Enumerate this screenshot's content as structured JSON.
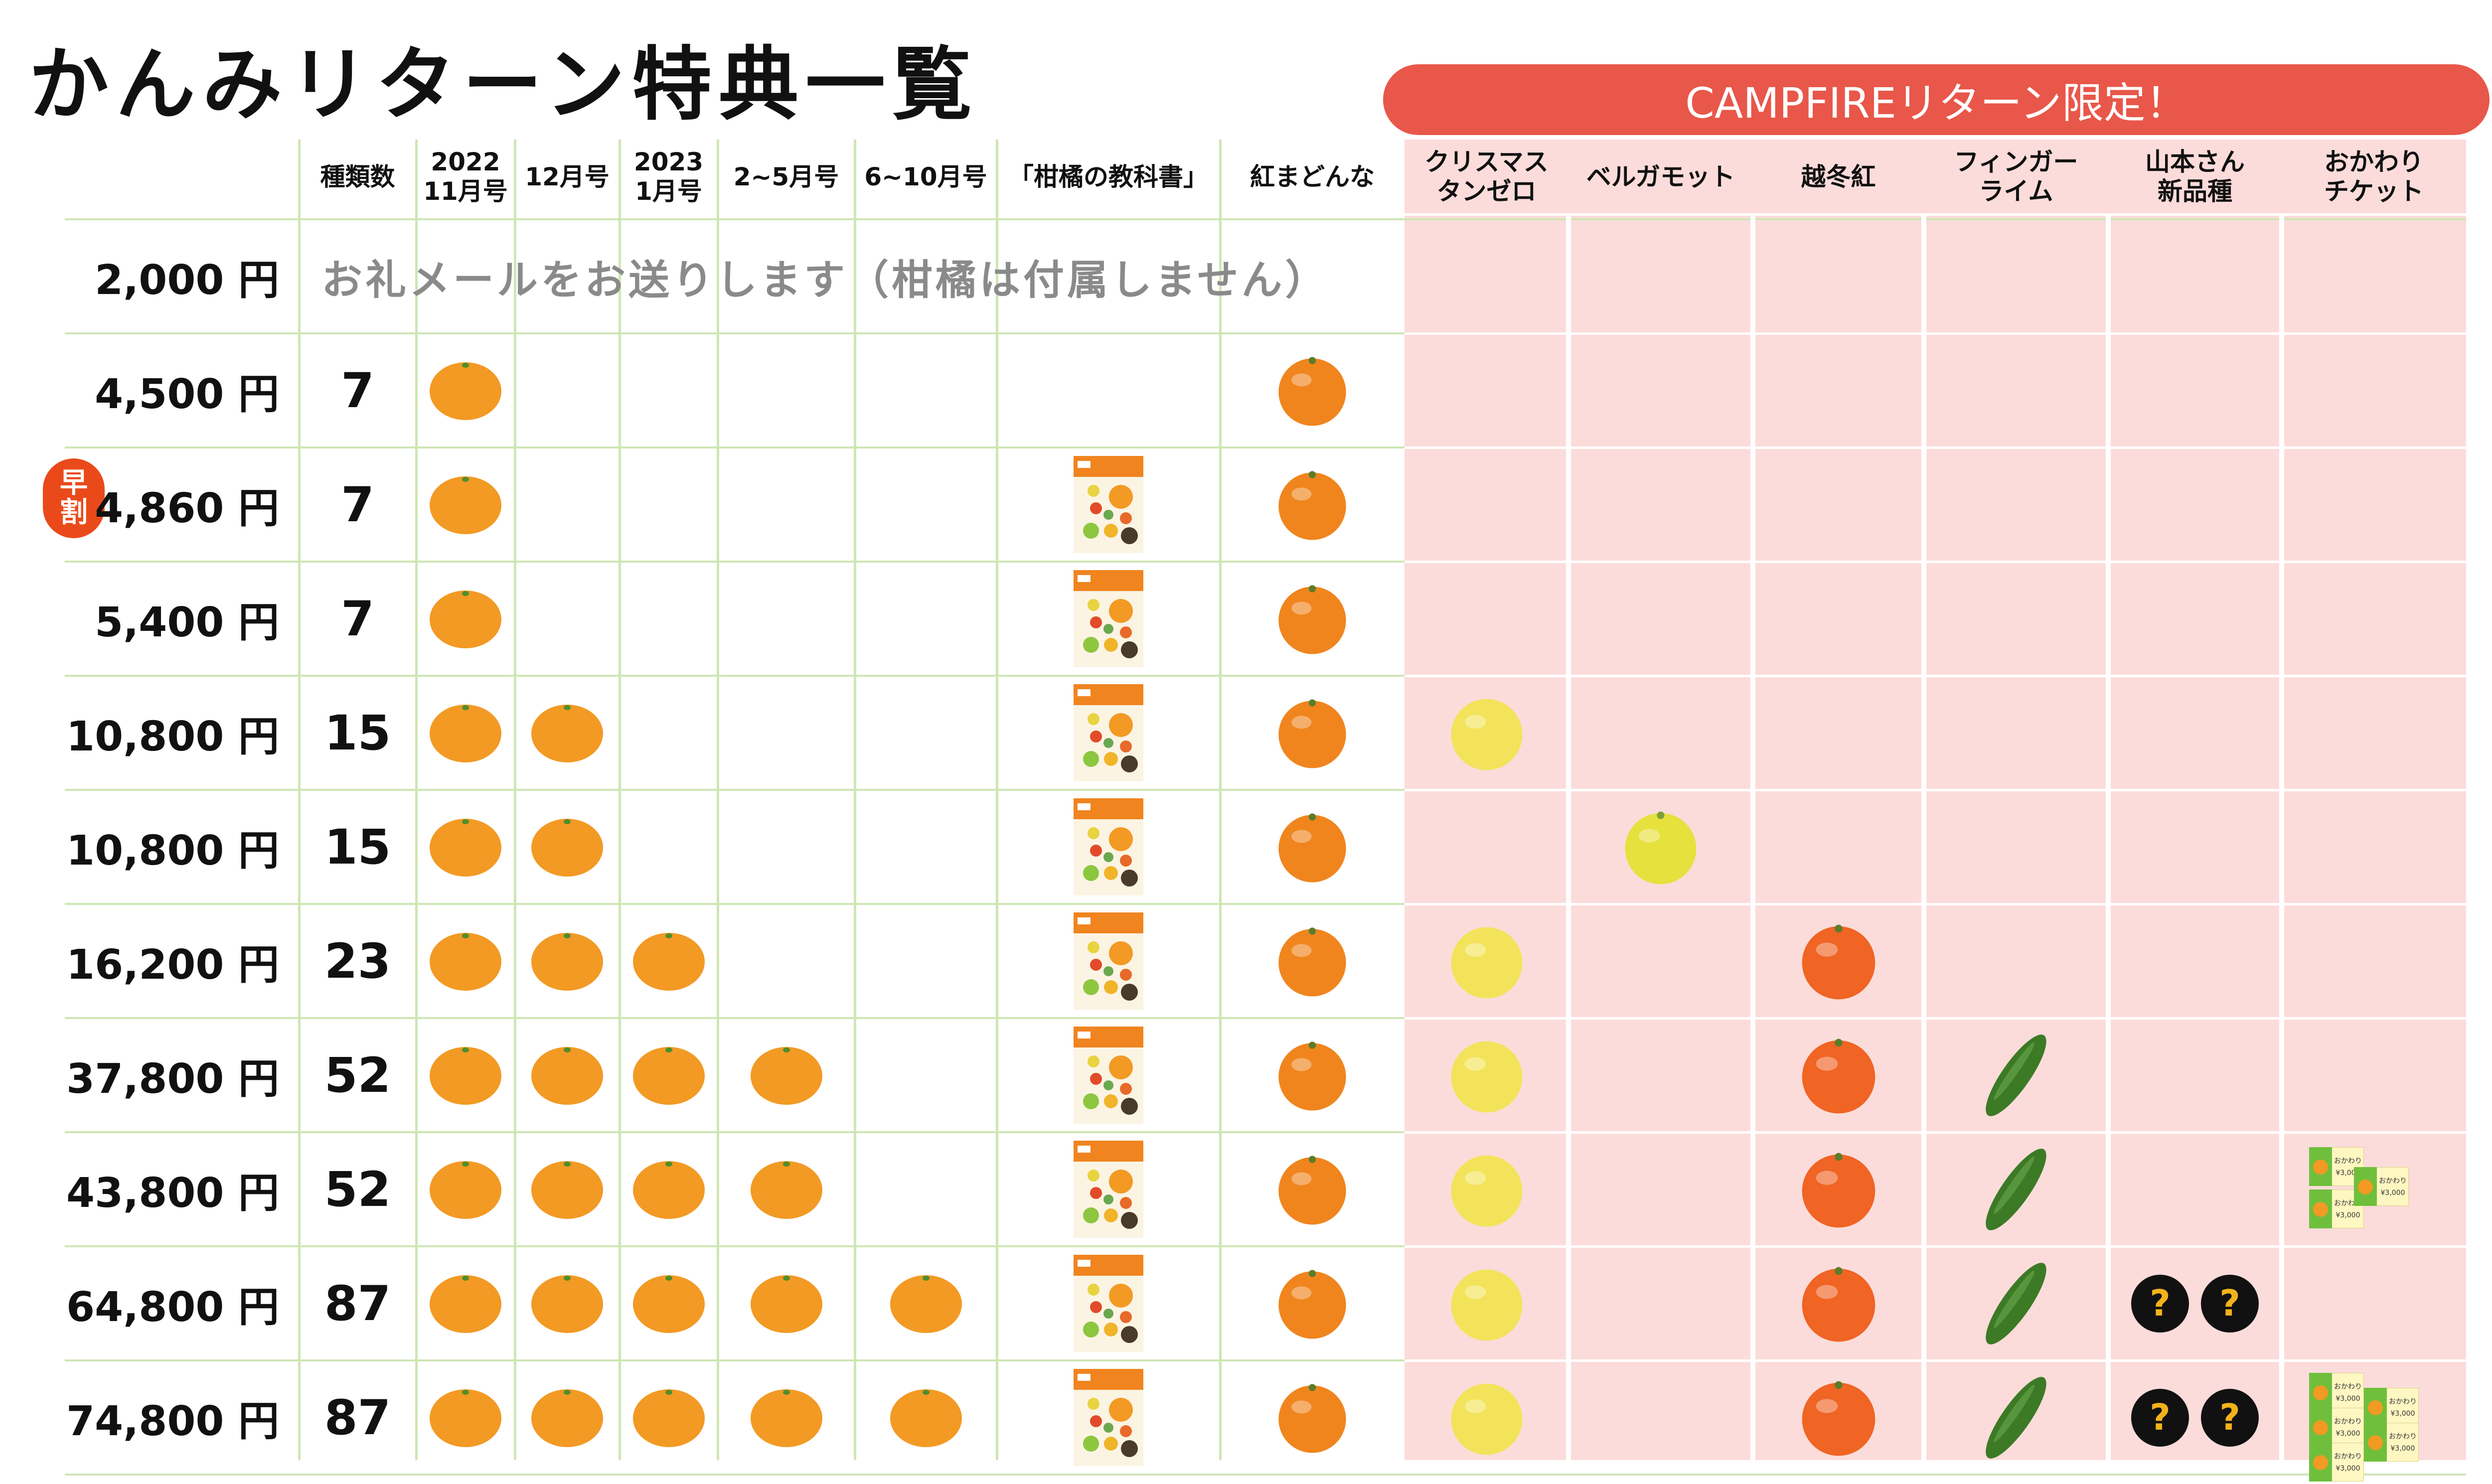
{
  "title": "かんみリターン特典一覧",
  "campfire_banner": "CAMPFIREリターン限定！",
  "early_badge": [
    "早",
    "割"
  ],
  "columns": [
    {
      "label": "種類数"
    },
    {
      "label": "2022\n11月号"
    },
    {
      "label": "12月号"
    },
    {
      "label": "2023\n1月号"
    },
    {
      "label": "2~5月号"
    },
    {
      "label": "6~10月号"
    },
    {
      "label": "「柑橘の教科書」"
    },
    {
      "label": "紅まどんな"
    },
    {
      "label": "クリスマス\nタンゼロ"
    },
    {
      "label": "ベルガモット"
    },
    {
      "label": "越冬紅"
    },
    {
      "label": "フィンガー\nライム"
    },
    {
      "label": "山本さん\n新品種"
    },
    {
      "label": "おかわり\nチケット"
    }
  ],
  "note_2000": "お礼メールをお送りします（柑橘は付属しません）",
  "rows": [
    {
      "price": "2,000 円",
      "count": "",
      "early": false,
      "cells": [
        0,
        0,
        0,
        0,
        0,
        0,
        0,
        0,
        0,
        0,
        0,
        0,
        0
      ]
    },
    {
      "price": "4,500 円",
      "count": "7",
      "early": false,
      "cells": [
        1,
        0,
        0,
        0,
        0,
        0,
        1,
        0,
        0,
        0,
        0,
        0,
        0
      ]
    },
    {
      "price": "4,860 円",
      "count": "7",
      "early": true,
      "cells": [
        1,
        0,
        0,
        0,
        0,
        1,
        1,
        0,
        0,
        0,
        0,
        0,
        0
      ]
    },
    {
      "price": "5,400 円",
      "count": "7",
      "early": false,
      "cells": [
        1,
        0,
        0,
        0,
        0,
        1,
        1,
        0,
        0,
        0,
        0,
        0,
        0
      ]
    },
    {
      "price": "10,800 円",
      "count": "15",
      "early": false,
      "cells": [
        1,
        1,
        0,
        0,
        0,
        1,
        1,
        1,
        0,
        0,
        0,
        0,
        0
      ]
    },
    {
      "price": "10,800 円",
      "count": "15",
      "early": false,
      "cells": [
        1,
        1,
        0,
        0,
        0,
        1,
        1,
        0,
        1,
        0,
        0,
        0,
        0
      ]
    },
    {
      "price": "16,200 円",
      "count": "23",
      "early": false,
      "cells": [
        1,
        1,
        1,
        0,
        0,
        1,
        1,
        1,
        0,
        1,
        0,
        0,
        0
      ]
    },
    {
      "price": "37,800 円",
      "count": "52",
      "early": false,
      "cells": [
        1,
        1,
        1,
        1,
        0,
        1,
        1,
        1,
        0,
        1,
        1,
        0,
        0
      ]
    },
    {
      "price": "43,800 円",
      "count": "52",
      "early": false,
      "cells": [
        1,
        1,
        1,
        1,
        0,
        1,
        1,
        1,
        0,
        1,
        1,
        0,
        1
      ]
    },
    {
      "price": "64,800 円",
      "count": "87",
      "early": false,
      "cells": [
        1,
        1,
        1,
        1,
        1,
        1,
        1,
        1,
        0,
        1,
        1,
        1,
        0
      ]
    },
    {
      "price": "74,800 円",
      "count": "87",
      "early": false,
      "cells": [
        1,
        1,
        1,
        1,
        1,
        1,
        1,
        1,
        0,
        1,
        1,
        1,
        2
      ]
    }
  ],
  "ticket_label": "おかわり",
  "ticket_value": "¥3,000",
  "mystery_mark": "?",
  "colors": {
    "banner": "#e8574a",
    "campfire_bg": "#fbdcda",
    "grid_line": "#cfe6b4",
    "mandarin": "#f29a24",
    "madonna": "#f0851e",
    "tangelo": "#f3e35a",
    "bergamot": "#e6e13d",
    "etto_beni": "#f06424",
    "finger_lime": "#3c7a26",
    "mystery": "#111111",
    "ticket": "#6fbf3c",
    "early_badge": "#ea4a1a"
  },
  "icons": [
    "mandarin-icon",
    "citrus-book-icon",
    "beni-madonna-icon",
    "tangelo-icon",
    "bergamot-icon",
    "etto-beni-icon",
    "finger-lime-icon",
    "mystery-variety-icon",
    "refill-ticket-icon"
  ]
}
